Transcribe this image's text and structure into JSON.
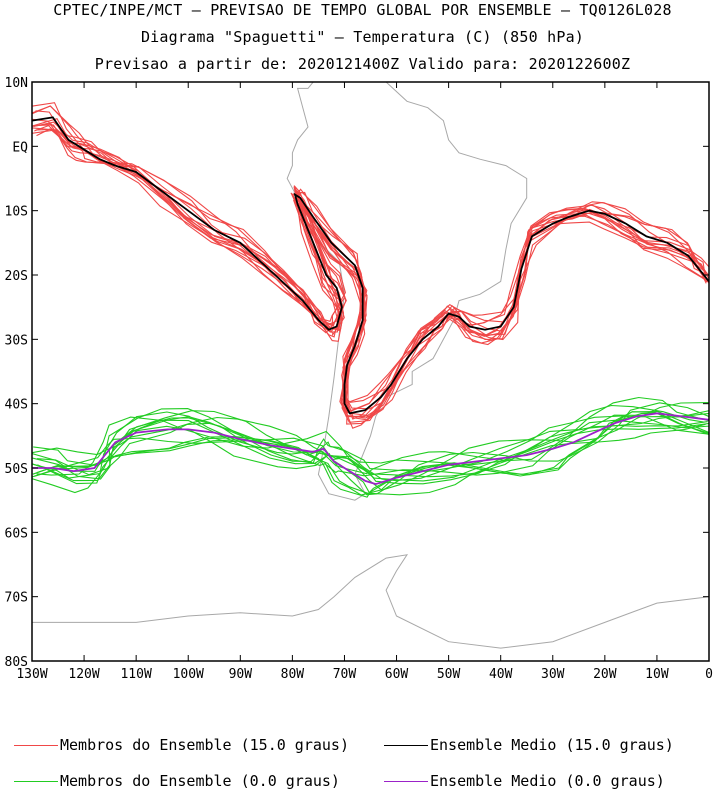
{
  "header": {
    "line1": "CPTEC/INPE/MCT — PREVISAO DE TEMPO GLOBAL POR ENSEMBLE — TQ0126L028",
    "line2": "Diagrama \"Spaguetti\" — Temperatura (C) (850 hPa)",
    "line3": "Previsao a partir de: 2020121400Z  Valido para: 2020122600Z"
  },
  "colors": {
    "warm_members": "#f04848",
    "warm_mean": "#000000",
    "cold_members": "#22cc22",
    "cold_mean": "#9b22c8",
    "coast": "#a8a8a8",
    "axes": "#000000"
  },
  "legend": [
    {
      "label": "Membros do Ensemble (15.0 graus)",
      "color_key": "warm_members"
    },
    {
      "label": "Ensemble Medio (15.0 graus)",
      "color_key": "warm_mean"
    },
    {
      "label": "Membros do Ensemble (0.0 graus)",
      "color_key": "cold_members"
    },
    {
      "label": "Ensemble Medio (0.0 graus)",
      "color_key": "cold_mean"
    }
  ],
  "chart_data": {
    "type": "line",
    "title": "Diagrama \"Spaguetti\" — Temperatura (C) (850 hPa)",
    "xlim": [
      -130,
      0
    ],
    "ylim": [
      -80,
      10
    ],
    "x_ticks": [
      -130,
      -120,
      -110,
      -100,
      -90,
      -80,
      -70,
      -60,
      -50,
      -40,
      -30,
      -20,
      -10,
      0
    ],
    "x_tick_labels": [
      "130W",
      "120W",
      "110W",
      "100W",
      "90W",
      "80W",
      "70W",
      "60W",
      "50W",
      "40W",
      "30W",
      "20W",
      "10W",
      "0"
    ],
    "y_ticks": [
      10,
      0,
      -10,
      -20,
      -30,
      -40,
      -50,
      -60,
      -70,
      -80
    ],
    "y_tick_labels": [
      "10N",
      "EQ",
      "10S",
      "20S",
      "30S",
      "40S",
      "50S",
      "60S",
      "70S",
      "80S"
    ],
    "grid": false,
    "legend_position": "bottom",
    "series": [
      {
        "name": "Ensemble Medio (15.0 graus)",
        "color_key": "warm_mean",
        "points": [
          [
            -130,
            4
          ],
          [
            -126,
            4.5
          ],
          [
            -123,
            1
          ],
          [
            -121,
            0
          ],
          [
            -119,
            -1
          ],
          [
            -117,
            -2
          ],
          [
            -114,
            -3
          ],
          [
            -110,
            -4
          ],
          [
            -105,
            -7
          ],
          [
            -100,
            -10
          ],
          [
            -95,
            -13
          ],
          [
            -90,
            -15
          ],
          [
            -86,
            -18
          ],
          [
            -82,
            -21
          ],
          [
            -78,
            -24
          ],
          [
            -75,
            -27
          ],
          [
            -73,
            -28.5
          ],
          [
            -71.5,
            -28
          ],
          [
            -70.5,
            -25
          ],
          [
            -71.5,
            -22
          ],
          [
            -73.5,
            -20
          ],
          [
            -75.5,
            -16
          ],
          [
            -77.5,
            -12
          ],
          [
            -79,
            -9
          ],
          [
            -79.5,
            -7.5
          ],
          [
            -78.5,
            -8
          ],
          [
            -76,
            -11
          ],
          [
            -72.5,
            -15
          ],
          [
            -68,
            -18.5
          ],
          [
            -66.5,
            -22
          ],
          [
            -66.5,
            -27
          ],
          [
            -68,
            -31
          ],
          [
            -69.5,
            -34
          ],
          [
            -70,
            -37
          ],
          [
            -70,
            -40
          ],
          [
            -69,
            -41.5
          ],
          [
            -66,
            -41
          ],
          [
            -63,
            -39
          ],
          [
            -61,
            -37
          ],
          [
            -58,
            -33
          ],
          [
            -55,
            -30
          ],
          [
            -52,
            -28
          ],
          [
            -50,
            -26
          ],
          [
            -48,
            -26.5
          ],
          [
            -46,
            -28
          ],
          [
            -43,
            -28.5
          ],
          [
            -40,
            -28
          ],
          [
            -37.5,
            -25
          ],
          [
            -36,
            -19
          ],
          [
            -34,
            -14
          ],
          [
            -30,
            -12
          ],
          [
            -27,
            -11
          ],
          [
            -23,
            -10
          ],
          [
            -20,
            -10.5
          ],
          [
            -16,
            -12
          ],
          [
            -12,
            -14
          ],
          [
            -8,
            -15
          ],
          [
            -4,
            -17
          ],
          [
            -2,
            -19
          ],
          [
            0,
            -21
          ]
        ]
      },
      {
        "name": "Ensemble Medio (0.0 graus)",
        "color_key": "cold_mean",
        "points": [
          [
            -130,
            -50
          ],
          [
            -126,
            -50
          ],
          [
            -122,
            -50.5
          ],
          [
            -118,
            -50
          ],
          [
            -116,
            -48
          ],
          [
            -114,
            -46
          ],
          [
            -110,
            -44.5
          ],
          [
            -104,
            -44
          ],
          [
            -100,
            -44
          ],
          [
            -95,
            -44.5
          ],
          [
            -90,
            -45.5
          ],
          [
            -84,
            -46.5
          ],
          [
            -80,
            -47
          ],
          [
            -76,
            -47.5
          ],
          [
            -74,
            -47
          ],
          [
            -72,
            -49
          ],
          [
            -70,
            -50
          ],
          [
            -66,
            -52
          ],
          [
            -64,
            -52.5
          ],
          [
            -60,
            -51.5
          ],
          [
            -55,
            -50.5
          ],
          [
            -50,
            -49.5
          ],
          [
            -45,
            -49
          ],
          [
            -40,
            -48.5
          ],
          [
            -35,
            -48
          ],
          [
            -30,
            -47
          ],
          [
            -26,
            -46
          ],
          [
            -22,
            -44.5
          ],
          [
            -18,
            -43
          ],
          [
            -14,
            -42
          ],
          [
            -10,
            -41.5
          ],
          [
            -5,
            -42
          ],
          [
            0,
            -42.5
          ]
        ]
      }
    ]
  }
}
